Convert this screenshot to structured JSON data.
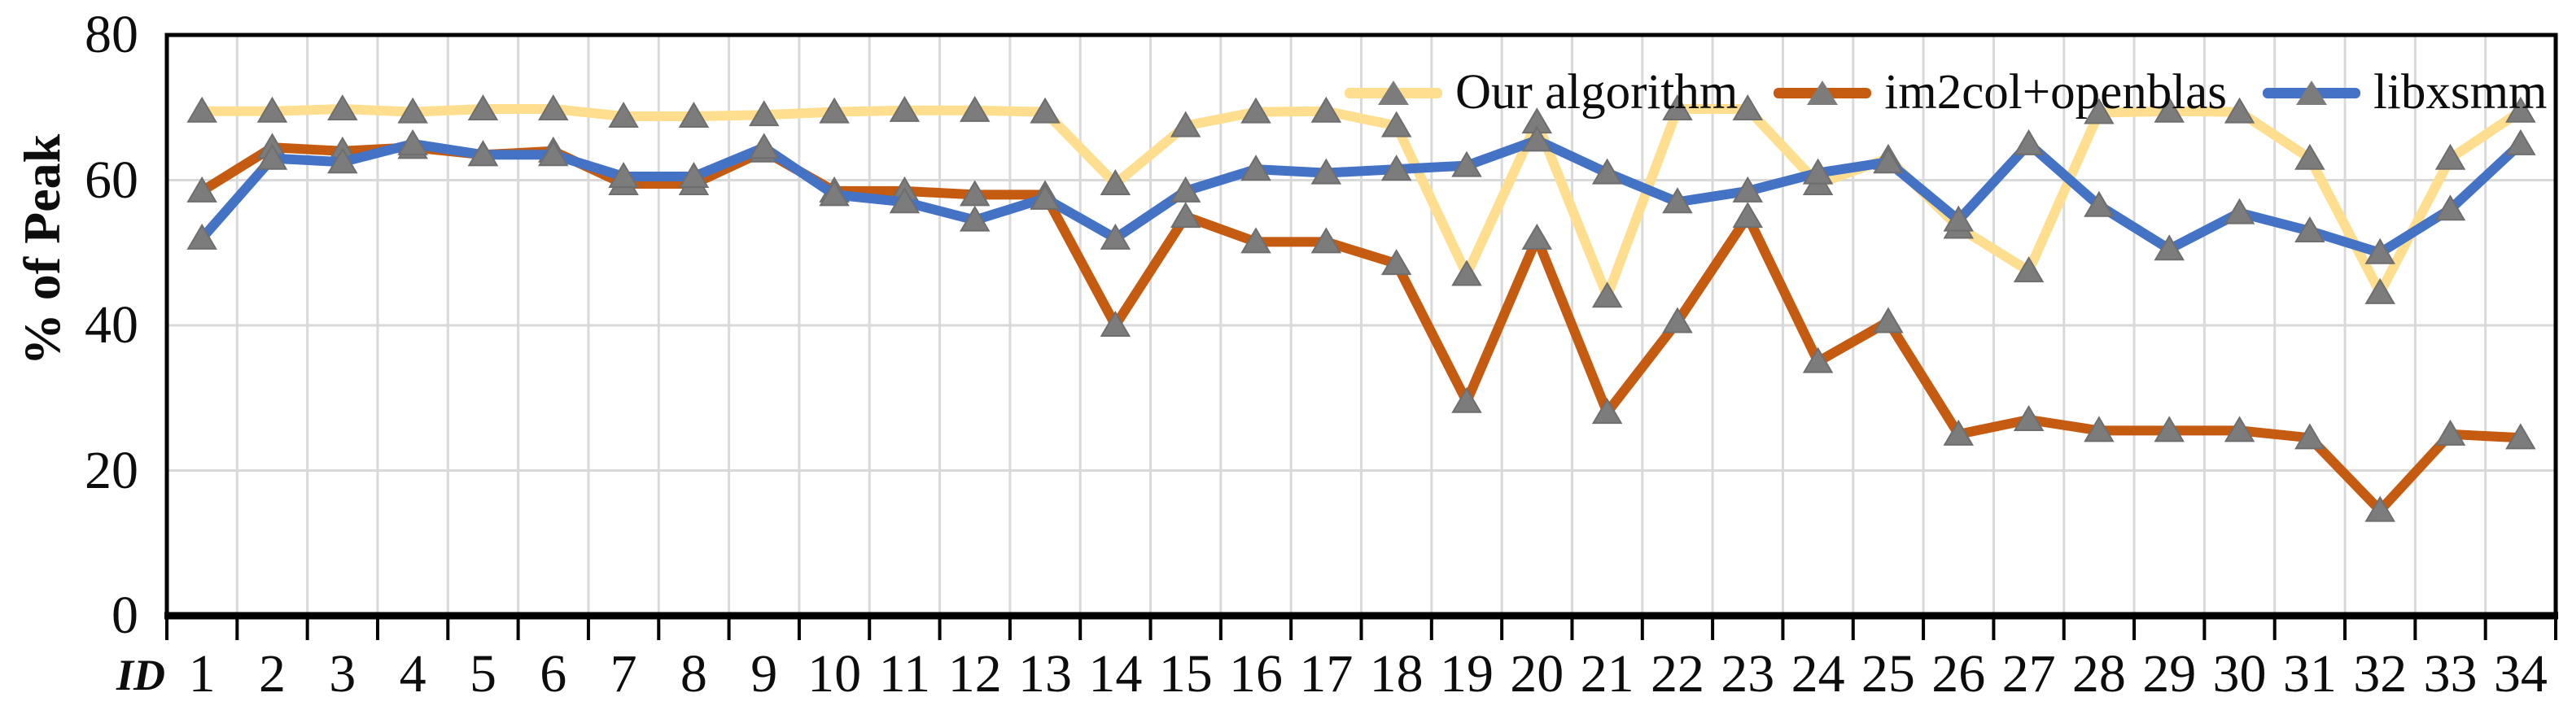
{
  "figure": {
    "background": "#ffffff",
    "axis_color": "#000000",
    "grid_color": "#d9d9d9",
    "marker_color": "#7c7c7c",
    "text_color": "#0d0d0d"
  },
  "chart_data": {
    "type": "line",
    "title": "",
    "xlabel": "ID",
    "ylabel": "% of Peak",
    "ylim": [
      0,
      80
    ],
    "yticks": [
      0,
      20,
      40,
      60,
      80
    ],
    "grid": "on",
    "legend_position": "top-right-inside",
    "categories": [
      "1",
      "2",
      "3",
      "4",
      "5",
      "6",
      "7",
      "8",
      "9",
      "10",
      "11",
      "12",
      "13",
      "14",
      "15",
      "16",
      "17",
      "18",
      "19",
      "20",
      "21",
      "22",
      "23",
      "24",
      "25",
      "26",
      "27",
      "28",
      "29",
      "30",
      "31",
      "32",
      "33",
      "34"
    ],
    "series": [
      {
        "name": "Our algorithm",
        "color": "#ffdf8f",
        "marker": "triangle",
        "values": [
          69.5,
          69.5,
          69.8,
          69.4,
          69.8,
          69.8,
          68.8,
          68.8,
          69,
          69.4,
          69.6,
          69.6,
          69.4,
          59.5,
          67.5,
          69.4,
          69.5,
          67.5,
          47,
          68,
          44,
          69.8,
          69.8,
          59.5,
          63,
          53.5,
          47.5,
          69.3,
          69.5,
          69.4,
          63,
          44.5,
          63,
          69.5
        ]
      },
      {
        "name": "im2col+openblas",
        "color": "#c55a11",
        "marker": "triangle",
        "values": [
          58.5,
          64.5,
          64,
          64.5,
          63.5,
          64,
          59.5,
          59.5,
          64,
          58.5,
          58.5,
          58,
          58,
          40,
          55,
          51.5,
          51.5,
          48.5,
          29.5,
          52,
          28,
          40.5,
          55,
          35,
          40.5,
          25,
          27,
          25.5,
          25.5,
          25.5,
          24.5,
          14.5,
          25,
          24.5
        ]
      },
      {
        "name": "libxsmm",
        "color": "#4472c4",
        "marker": "triangle",
        "values": [
          52,
          63,
          62.5,
          65,
          63.5,
          63.5,
          60.5,
          60.5,
          64.5,
          58,
          57,
          54.5,
          57.5,
          52,
          58.5,
          61.5,
          61,
          61.5,
          62,
          65.5,
          61,
          57,
          58.5,
          61,
          62.5,
          54.5,
          65,
          56.5,
          50.5,
          55.5,
          53,
          50,
          56,
          65
        ]
      }
    ]
  }
}
